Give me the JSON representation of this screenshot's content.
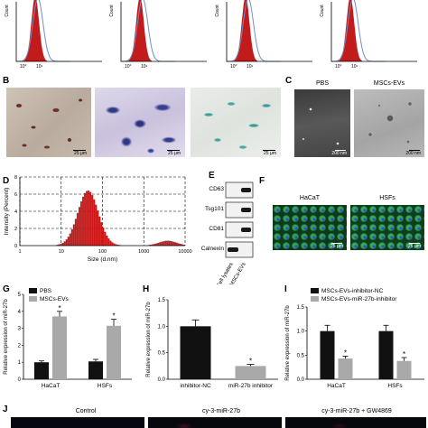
{
  "panel_labels": {
    "B": "B",
    "C": "C",
    "D": "D",
    "E": "E",
    "F": "F",
    "G": "G",
    "H": "H",
    "I": "I",
    "J": "J"
  },
  "flow_panels": {
    "ylabel": "Count",
    "xtick_labels": [
      "10°",
      "10¹"
    ],
    "fill_color": "#c21b1b",
    "line_color": "#6f8fc9"
  },
  "panel_B": {
    "scale": [
      "25 μm",
      "25 μm",
      "25 μm"
    ]
  },
  "panel_C": {
    "labels": [
      "PBS",
      "MSCs-EVs"
    ],
    "scale": [
      "200 nm",
      "200 nm"
    ]
  },
  "panel_D": {
    "chart_data": {
      "type": "histogram",
      "title": "",
      "xlabel": "Size (d.nm)",
      "ylabel": "Intensity (Percent)",
      "x_scale": "log",
      "xlim": [
        1,
        10000
      ],
      "ylim": [
        0,
        8
      ],
      "x_ticks": [
        "1",
        "10",
        "100",
        "1000",
        "10000"
      ],
      "y_ticks": [
        "0",
        "2",
        "4",
        "6",
        "8"
      ],
      "peaks": [
        {
          "center": 45,
          "height": 6.4,
          "log_width": 0.35
        },
        {
          "center": 3800,
          "height": 0.55,
          "log_width": 0.3
        }
      ],
      "bar_color": "#d01818"
    }
  },
  "panel_E": {
    "bands": [
      "CD63",
      "Tsg101",
      "CD81",
      "Calnexin"
    ],
    "lanes": [
      "Cell lysates",
      "MSCs-EVs"
    ]
  },
  "panel_F": {
    "labels": [
      "HaCaT",
      "HSFs"
    ],
    "scale": [
      "25 μm",
      "25 μm"
    ]
  },
  "panel_G": {
    "chart_data": {
      "type": "bar",
      "categories": [
        "HaCaT",
        "HSFs"
      ],
      "series": [
        {
          "name": "PBS",
          "values": [
            1.0,
            1.05
          ],
          "errors": [
            0.08,
            0.12
          ],
          "color": "#111111"
        },
        {
          "name": "MSCs-EVs",
          "values": [
            3.7,
            3.15
          ],
          "errors": [
            0.3,
            0.38
          ],
          "color": "#a9a9a9"
        }
      ],
      "ylabel": "Relative expression of miR-27b",
      "ylim": [
        0,
        5
      ],
      "y_ticks": [
        "0",
        "1",
        "2",
        "3",
        "4",
        "5"
      ],
      "annotations": [
        "*",
        "*"
      ]
    }
  },
  "panel_H": {
    "chart_data": {
      "type": "bar",
      "categories": [
        "inhibitor-NC",
        "miR-27b inhibitor"
      ],
      "values": [
        1.0,
        0.25
      ],
      "errors": [
        0.12,
        0.03
      ],
      "colors": [
        "#111111",
        "#a9a9a9"
      ],
      "ylabel": "Relative expression of miR-27b",
      "ylim": [
        0,
        1.5
      ],
      "y_ticks": [
        "0.0",
        "0.5",
        "1.0",
        "1.5"
      ],
      "annotations": [
        "*"
      ]
    }
  },
  "panel_I": {
    "chart_data": {
      "type": "bar",
      "categories": [
        "HaCaT",
        "HSFs"
      ],
      "series": [
        {
          "name": "MSCs-EVs-inhibitor-NC",
          "values": [
            1.0,
            1.0
          ],
          "errors": [
            0.12,
            0.12
          ],
          "color": "#111111"
        },
        {
          "name": "MSCs-EVs-miR-27b-inhibitor",
          "values": [
            0.43,
            0.38
          ],
          "errors": [
            0.05,
            0.07
          ],
          "color": "#a9a9a9"
        }
      ],
      "ylabel": "Relative expression of miR-27b",
      "ylim": [
        0,
        1.5
      ],
      "y_ticks": [
        "0.0",
        "0.5",
        "1.0",
        "1.5"
      ],
      "annotations": [
        "*",
        "*"
      ]
    }
  },
  "panel_J": {
    "labels": [
      "Control",
      "cy-3-miR-27b",
      "cy-3-miR-27b + GW4869"
    ]
  }
}
